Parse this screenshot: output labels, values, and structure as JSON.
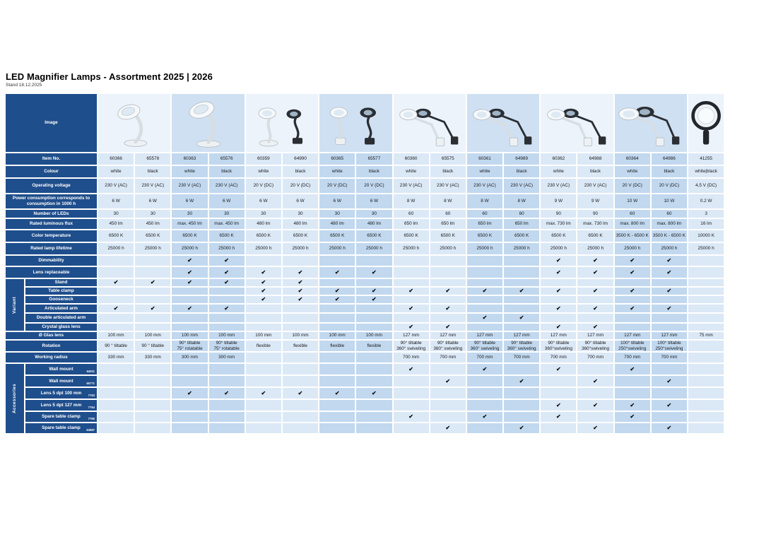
{
  "page": {
    "title": "LED Magnifier Lamps - Assortment 2025 | 2026",
    "subtitle": "Stand 18.12.2025"
  },
  "colors": {
    "header_blue": "#1f4e8c",
    "pair_light": "#dbe8f6",
    "pair_dark": "#c1d8ef",
    "page_bg": "#ffffff",
    "text_dark": "#1a1a1a"
  },
  "glyphs": {
    "check": "✔"
  },
  "table": {
    "groups": {
      "variant": "Variant",
      "accessories": "Accessories"
    },
    "rows": [
      {
        "key": "image",
        "label": "Image",
        "type": "image"
      },
      {
        "key": "item_no",
        "label": "Item No.",
        "type": "text"
      },
      {
        "key": "colour",
        "label": "Colour",
        "type": "text"
      },
      {
        "key": "voltage",
        "label": "Operating voltage",
        "type": "text"
      },
      {
        "key": "power",
        "label": "Power consumption corresponds to consumption in 1000 h",
        "type": "text"
      },
      {
        "key": "leds",
        "label": "Number of LEDs",
        "type": "text"
      },
      {
        "key": "flux",
        "label": "Rated luminous flux",
        "type": "text"
      },
      {
        "key": "temp",
        "label": "Color temperature",
        "type": "text"
      },
      {
        "key": "lifetime",
        "label": "Rated lamp lifetime",
        "type": "text"
      },
      {
        "key": "dimmable",
        "label": "Dimmability",
        "type": "check"
      },
      {
        "key": "lens_replaceable",
        "label": "Lens replaceable",
        "type": "check"
      },
      {
        "key": "stand",
        "label": "Stand",
        "type": "check",
        "group": "variant"
      },
      {
        "key": "table_clamp",
        "label": "Table clamp",
        "type": "check",
        "group": "variant"
      },
      {
        "key": "gooseneck",
        "label": "Gooseneck",
        "type": "check",
        "group": "variant"
      },
      {
        "key": "articulated",
        "label": "Articulated arm",
        "type": "check",
        "group": "variant"
      },
      {
        "key": "double_articulated",
        "label": "Double articulated arm",
        "type": "check",
        "group": "variant"
      },
      {
        "key": "crystal",
        "label": "Crystal glass lens",
        "type": "check",
        "group": "variant"
      },
      {
        "key": "glass_dia",
        "label": "Ø Glas lens",
        "type": "text"
      },
      {
        "key": "rotation",
        "label": "Rotation",
        "type": "multiline"
      },
      {
        "key": "working_radius",
        "label": "Working radius",
        "type": "text"
      },
      {
        "key": "wall_mount_w",
        "label": "Wall mount",
        "code": "64911",
        "type": "check",
        "group": "accessories"
      },
      {
        "key": "wall_mount_b",
        "label": "Wall mount",
        "code": "65771",
        "type": "check",
        "group": "accessories"
      },
      {
        "key": "lens100",
        "label": "Lens 5 dpt 100 mm",
        "code": "7763",
        "type": "check",
        "group": "accessories"
      },
      {
        "key": "lens127",
        "label": "Lens 5 dpt 127 mm",
        "code": "7764",
        "type": "check",
        "group": "accessories"
      },
      {
        "key": "clamp_w",
        "label": "Spare table clamp",
        "code": "7765",
        "type": "check",
        "group": "accessories"
      },
      {
        "key": "clamp_b",
        "label": "Spare table clamp",
        "code": "64987",
        "type": "check",
        "group": "accessories"
      }
    ],
    "images": [
      {
        "span": 2,
        "type": "stand"
      },
      {
        "span": 2,
        "type": "stand-tall"
      },
      {
        "span": 2,
        "type": "duo"
      },
      {
        "span": 2,
        "type": "goose"
      },
      {
        "span": 2,
        "type": "arm"
      },
      {
        "span": 2,
        "type": "arm"
      },
      {
        "span": 2,
        "type": "arm"
      },
      {
        "span": 2,
        "type": "arm-large"
      },
      {
        "span": 1,
        "type": "hand-magnifier"
      }
    ],
    "columns": [
      {
        "item_no": "60366",
        "colour": "white",
        "voltage": "230 V (AC)",
        "power": "6 W",
        "leds": "30",
        "flux": "450 lm",
        "temp": "6500 K",
        "lifetime": "25000 h",
        "dimmable": false,
        "lens_replaceable": false,
        "stand": true,
        "table_clamp": false,
        "gooseneck": false,
        "articulated": true,
        "double_articulated": false,
        "crystal": false,
        "glass_dia": "100 mm",
        "rotation": [
          "90 ° tiltable"
        ],
        "working_radius": "330 mm",
        "wall_mount_w": false,
        "wall_mount_b": false,
        "lens100": false,
        "lens127": false,
        "clamp_w": false,
        "clamp_b": false
      },
      {
        "item_no": "65578",
        "colour": "black",
        "voltage": "230 V (AC)",
        "power": "6 W",
        "leds": "30",
        "flux": "450 lm",
        "temp": "6500 K",
        "lifetime": "25000 h",
        "dimmable": false,
        "lens_replaceable": false,
        "stand": true,
        "table_clamp": false,
        "gooseneck": false,
        "articulated": true,
        "double_articulated": false,
        "crystal": false,
        "glass_dia": "100 mm",
        "rotation": [
          "90 ° tiltable"
        ],
        "working_radius": "330 mm",
        "wall_mount_w": false,
        "wall_mount_b": false,
        "lens100": false,
        "lens127": false,
        "clamp_w": false,
        "clamp_b": false
      },
      {
        "item_no": "60363",
        "colour": "white",
        "voltage": "230 V (AC)",
        "power": "6 W",
        "leds": "30",
        "flux": "max. 450 lm",
        "temp": "6500 K",
        "lifetime": "25000 h",
        "dimmable": true,
        "lens_replaceable": true,
        "stand": true,
        "table_clamp": false,
        "gooseneck": false,
        "articulated": true,
        "double_articulated": false,
        "crystal": false,
        "glass_dia": "100 mm",
        "rotation": [
          "90° tiltable",
          "75° rotatable"
        ],
        "working_radius": "300 mm",
        "wall_mount_w": false,
        "wall_mount_b": false,
        "lens100": true,
        "lens127": false,
        "clamp_w": false,
        "clamp_b": false
      },
      {
        "item_no": "65576",
        "colour": "black",
        "voltage": "230 V (AC)",
        "power": "6 W",
        "leds": "30",
        "flux": "max. 450 lm",
        "temp": "6500 K",
        "lifetime": "25000 h",
        "dimmable": true,
        "lens_replaceable": true,
        "stand": true,
        "table_clamp": false,
        "gooseneck": false,
        "articulated": true,
        "double_articulated": false,
        "crystal": false,
        "glass_dia": "100 mm",
        "rotation": [
          "90° tiltable",
          "75° rotatable"
        ],
        "working_radius": "300 mm",
        "wall_mount_w": false,
        "wall_mount_b": false,
        "lens100": true,
        "lens127": false,
        "clamp_w": false,
        "clamp_b": false
      },
      {
        "item_no": "60359",
        "colour": "white",
        "voltage": "20 V (DC)",
        "power": "6 W",
        "leds": "30",
        "flux": "480 lm",
        "temp": "6500 K",
        "lifetime": "25000 h",
        "dimmable": false,
        "lens_replaceable": true,
        "stand": true,
        "table_clamp": true,
        "gooseneck": true,
        "articulated": false,
        "double_articulated": false,
        "crystal": false,
        "glass_dia": "100 mm",
        "rotation": [
          "flexible"
        ],
        "working_radius": "",
        "wall_mount_w": false,
        "wall_mount_b": false,
        "lens100": true,
        "lens127": false,
        "clamp_w": false,
        "clamp_b": false
      },
      {
        "item_no": "64990",
        "colour": "black",
        "voltage": "20 V (DC)",
        "power": "6 W",
        "leds": "30",
        "flux": "480 lm",
        "temp": "6500 K",
        "lifetime": "25000 h",
        "dimmable": false,
        "lens_replaceable": true,
        "stand": true,
        "table_clamp": true,
        "gooseneck": true,
        "articulated": false,
        "double_articulated": false,
        "crystal": false,
        "glass_dia": "100 mm",
        "rotation": [
          "flexible"
        ],
        "working_radius": "",
        "wall_mount_w": false,
        "wall_mount_b": false,
        "lens100": true,
        "lens127": false,
        "clamp_w": false,
        "clamp_b": false
      },
      {
        "item_no": "60365",
        "colour": "white",
        "voltage": "20 V (DC)",
        "power": "6 W",
        "leds": "30",
        "flux": "480 lm",
        "temp": "6500 K",
        "lifetime": "25000 h",
        "dimmable": false,
        "lens_replaceable": true,
        "stand": false,
        "table_clamp": true,
        "gooseneck": true,
        "articulated": false,
        "double_articulated": false,
        "crystal": false,
        "glass_dia": "100 mm",
        "rotation": [
          "flexible"
        ],
        "working_radius": "",
        "wall_mount_w": false,
        "wall_mount_b": false,
        "lens100": true,
        "lens127": false,
        "clamp_w": false,
        "clamp_b": false
      },
      {
        "item_no": "65577",
        "colour": "black",
        "voltage": "20 V (DC)",
        "power": "6 W",
        "leds": "30",
        "flux": "480 lm",
        "temp": "6500 K",
        "lifetime": "25000 h",
        "dimmable": false,
        "lens_replaceable": true,
        "stand": false,
        "table_clamp": true,
        "gooseneck": true,
        "articulated": false,
        "double_articulated": false,
        "crystal": false,
        "glass_dia": "100 mm",
        "rotation": [
          "flexible"
        ],
        "working_radius": "",
        "wall_mount_w": false,
        "wall_mount_b": false,
        "lens100": true,
        "lens127": false,
        "clamp_w": false,
        "clamp_b": false
      },
      {
        "item_no": "60360",
        "colour": "white",
        "voltage": "230 V (AC)",
        "power": "8 W",
        "leds": "60",
        "flux": "650 lm",
        "temp": "6500 K",
        "lifetime": "25000 h",
        "dimmable": false,
        "lens_replaceable": false,
        "stand": false,
        "table_clamp": true,
        "gooseneck": false,
        "articulated": true,
        "double_articulated": false,
        "crystal": true,
        "glass_dia": "127 mm",
        "rotation": [
          "90° tiltable",
          "360° swiveling"
        ],
        "working_radius": "700 mm",
        "wall_mount_w": true,
        "wall_mount_b": false,
        "lens100": false,
        "lens127": false,
        "clamp_w": true,
        "clamp_b": false
      },
      {
        "item_no": "65575",
        "colour": "black",
        "voltage": "230 V (AC)",
        "power": "8 W",
        "leds": "60",
        "flux": "650 lm",
        "temp": "6500 K",
        "lifetime": "25000 h",
        "dimmable": false,
        "lens_replaceable": false,
        "stand": false,
        "table_clamp": true,
        "gooseneck": false,
        "articulated": true,
        "double_articulated": false,
        "crystal": true,
        "glass_dia": "127 mm",
        "rotation": [
          "90° tiltable",
          "360° swiveling"
        ],
        "working_radius": "700 mm",
        "wall_mount_w": false,
        "wall_mount_b": true,
        "lens100": false,
        "lens127": false,
        "clamp_w": false,
        "clamp_b": true
      },
      {
        "item_no": "60361",
        "colour": "white",
        "voltage": "230 V (AC)",
        "power": "8 W",
        "leds": "60",
        "flux": "650 lm",
        "temp": "6500 K",
        "lifetime": "25000 h",
        "dimmable": false,
        "lens_replaceable": false,
        "stand": false,
        "table_clamp": true,
        "gooseneck": false,
        "articulated": false,
        "double_articulated": true,
        "crystal": false,
        "glass_dia": "127 mm",
        "rotation": [
          "90° tiltable",
          "360° swiveling"
        ],
        "working_radius": "700 mm",
        "wall_mount_w": true,
        "wall_mount_b": false,
        "lens100": false,
        "lens127": false,
        "clamp_w": true,
        "clamp_b": false
      },
      {
        "item_no": "64989",
        "colour": "black",
        "voltage": "230 V (AC)",
        "power": "8 W",
        "leds": "60",
        "flux": "650 lm",
        "temp": "6500 K",
        "lifetime": "25000 h",
        "dimmable": false,
        "lens_replaceable": false,
        "stand": false,
        "table_clamp": true,
        "gooseneck": false,
        "articulated": false,
        "double_articulated": true,
        "crystal": false,
        "glass_dia": "127 mm",
        "rotation": [
          "90° tiltable",
          "360° swiveling"
        ],
        "working_radius": "700 mm",
        "wall_mount_w": false,
        "wall_mount_b": true,
        "lens100": false,
        "lens127": false,
        "clamp_w": false,
        "clamp_b": true
      },
      {
        "item_no": "60362",
        "colour": "white",
        "voltage": "230 V (AC)",
        "power": "9 W",
        "leds": "90",
        "flux": "max. 730 lm",
        "temp": "6500 K",
        "lifetime": "25000 h",
        "dimmable": true,
        "lens_replaceable": true,
        "stand": false,
        "table_clamp": true,
        "gooseneck": false,
        "articulated": true,
        "double_articulated": false,
        "crystal": true,
        "glass_dia": "127 mm",
        "rotation": [
          "90° tiltable",
          "360°swiveling"
        ],
        "working_radius": "700 mm",
        "wall_mount_w": true,
        "wall_mount_b": false,
        "lens100": false,
        "lens127": true,
        "clamp_w": true,
        "clamp_b": false
      },
      {
        "item_no": "64988",
        "colour": "black",
        "voltage": "230 V (AC)",
        "power": "9 W",
        "leds": "90",
        "flux": "max. 730 lm",
        "temp": "6500 K",
        "lifetime": "25000 h",
        "dimmable": true,
        "lens_replaceable": true,
        "stand": false,
        "table_clamp": true,
        "gooseneck": false,
        "articulated": true,
        "double_articulated": false,
        "crystal": true,
        "glass_dia": "127 mm",
        "rotation": [
          "90° tiltable",
          "360°swiveling"
        ],
        "working_radius": "700 mm",
        "wall_mount_w": false,
        "wall_mount_b": true,
        "lens100": false,
        "lens127": true,
        "clamp_w": false,
        "clamp_b": true
      },
      {
        "item_no": "60364",
        "colour": "white",
        "voltage": "20 V (DC)",
        "power": "10 W",
        "leds": "60",
        "flux": "max. 800 lm",
        "temp": "3500 K - 6500 K",
        "lifetime": "25000 h",
        "dimmable": true,
        "lens_replaceable": true,
        "stand": false,
        "table_clamp": true,
        "gooseneck": false,
        "articulated": true,
        "double_articulated": false,
        "crystal": false,
        "glass_dia": "127 mm",
        "rotation": [
          "100° tiltable",
          "250°swiveling"
        ],
        "working_radius": "700 mm",
        "wall_mount_w": true,
        "wall_mount_b": false,
        "lens100": false,
        "lens127": true,
        "clamp_w": true,
        "clamp_b": false
      },
      {
        "item_no": "64986",
        "colour": "black",
        "voltage": "20 V (DC)",
        "power": "10 W",
        "leds": "60",
        "flux": "max. 800 lm",
        "temp": "3500 K - 6500 K",
        "lifetime": "25000 h",
        "dimmable": true,
        "lens_replaceable": true,
        "stand": false,
        "table_clamp": true,
        "gooseneck": false,
        "articulated": true,
        "double_articulated": false,
        "crystal": false,
        "glass_dia": "127 mm",
        "rotation": [
          "100° tiltable",
          "250°swiveling"
        ],
        "working_radius": "700 mm",
        "wall_mount_w": false,
        "wall_mount_b": true,
        "lens100": false,
        "lens127": true,
        "clamp_w": false,
        "clamp_b": true
      },
      {
        "item_no": "41255",
        "colour": "white|black",
        "voltage": "4,5 V (DC)",
        "power": "0.2 W",
        "leds": "3",
        "flux": "16 lm",
        "temp": "10000 K",
        "lifetime": "25000 h",
        "dimmable": false,
        "lens_replaceable": false,
        "stand": false,
        "table_clamp": false,
        "gooseneck": false,
        "articulated": false,
        "double_articulated": false,
        "crystal": false,
        "glass_dia": "75 mm",
        "rotation": [],
        "working_radius": "",
        "wall_mount_w": false,
        "wall_mount_b": false,
        "lens100": false,
        "lens127": false,
        "clamp_w": false,
        "clamp_b": false
      }
    ]
  }
}
